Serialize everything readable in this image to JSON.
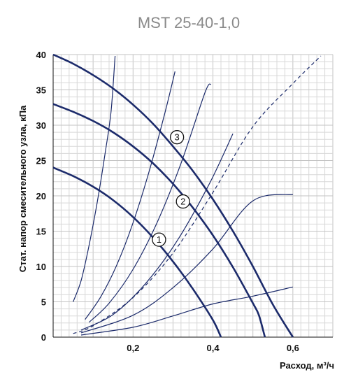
{
  "chart_data": {
    "type": "line",
    "title": "MST 25-40-1,0",
    "xlabel": "Расход, м³/ч",
    "ylabel": "Стат. напор смесительного узла, кПа",
    "xlim": [
      0,
      0.7
    ],
    "ylim": [
      0,
      40
    ],
    "x_ticks": [
      {
        "value": 0.2,
        "label": "0,2"
      },
      {
        "value": 0.4,
        "label": "0,4"
      },
      {
        "value": 0.6,
        "label": "0,6"
      }
    ],
    "y_ticks": [
      {
        "value": 0,
        "label": "0"
      },
      {
        "value": 5,
        "label": "5"
      },
      {
        "value": 10,
        "label": "10"
      },
      {
        "value": 15,
        "label": "15"
      },
      {
        "value": 20,
        "label": "20"
      },
      {
        "value": 25,
        "label": "25"
      },
      {
        "value": 30,
        "label": "30"
      },
      {
        "value": 35,
        "label": "35"
      },
      {
        "value": 40,
        "label": "40"
      }
    ],
    "grid": true,
    "minor_grid": true,
    "pump_curves": [
      {
        "label": "1",
        "marker_at": [
          0.265,
          13.8
        ],
        "points": [
          [
            0,
            24
          ],
          [
            0.05,
            22.8
          ],
          [
            0.1,
            21.3
          ],
          [
            0.15,
            19.4
          ],
          [
            0.2,
            17
          ],
          [
            0.25,
            14.1
          ],
          [
            0.3,
            10.7
          ],
          [
            0.35,
            6.8
          ],
          [
            0.4,
            2.4
          ],
          [
            0.42,
            0
          ]
        ]
      },
      {
        "label": "2",
        "marker_at": [
          0.325,
          19.2
        ],
        "points": [
          [
            0,
            33
          ],
          [
            0.05,
            31.9
          ],
          [
            0.1,
            30.6
          ],
          [
            0.15,
            29
          ],
          [
            0.2,
            27
          ],
          [
            0.25,
            24.6
          ],
          [
            0.3,
            21.7
          ],
          [
            0.35,
            18.3
          ],
          [
            0.4,
            14.4
          ],
          [
            0.45,
            9.9
          ],
          [
            0.5,
            4.8
          ],
          [
            0.515,
            3.1
          ],
          [
            0.53,
            0
          ]
        ]
      },
      {
        "label": "3",
        "marker_at": [
          0.31,
          28.3
        ],
        "points": [
          [
            0,
            40
          ],
          [
            0.05,
            38.7
          ],
          [
            0.1,
            37.1
          ],
          [
            0.15,
            35.2
          ],
          [
            0.2,
            32.9
          ],
          [
            0.25,
            30.2
          ],
          [
            0.3,
            27
          ],
          [
            0.35,
            23.5
          ],
          [
            0.4,
            19.5
          ],
          [
            0.45,
            15
          ],
          [
            0.5,
            10
          ],
          [
            0.55,
            4.6
          ],
          [
            0.6,
            0
          ]
        ]
      }
    ],
    "system_curves": [
      {
        "style": "solid",
        "points": [
          [
            0.05,
            5
          ],
          [
            0.07,
            8
          ],
          [
            0.09,
            13
          ],
          [
            0.11,
            19
          ],
          [
            0.13,
            26
          ],
          [
            0.145,
            32
          ],
          [
            0.155,
            39.8
          ]
        ]
      },
      {
        "style": "solid",
        "points": [
          [
            0.08,
            2.5
          ],
          [
            0.12,
            5.8
          ],
          [
            0.16,
            10.3
          ],
          [
            0.2,
            16.2
          ],
          [
            0.24,
            23.4
          ],
          [
            0.28,
            31.8
          ],
          [
            0.305,
            37.6
          ]
        ]
      },
      {
        "style": "solid",
        "points": [
          [
            0.09,
            2.1
          ],
          [
            0.14,
            4.8
          ],
          [
            0.2,
            9.6
          ],
          [
            0.26,
            16.2
          ],
          [
            0.32,
            24.6
          ],
          [
            0.38,
            34.6
          ],
          [
            0.395,
            35.8
          ]
        ]
      },
      {
        "style": "solid",
        "points": [
          [
            0.07,
            1
          ],
          [
            0.15,
            3.2
          ],
          [
            0.23,
            7.5
          ],
          [
            0.31,
            13.6
          ],
          [
            0.39,
            21.6
          ],
          [
            0.45,
            28.8
          ]
        ]
      },
      {
        "style": "solid",
        "points": [
          [
            0.07,
            0.6
          ],
          [
            0.2,
            3.1
          ],
          [
            0.3,
            7
          ],
          [
            0.4,
            12.5
          ],
          [
            0.5,
            19.3
          ],
          [
            0.6,
            20.2
          ]
        ]
      },
      {
        "style": "solid",
        "points": [
          [
            0.07,
            0.3
          ],
          [
            0.2,
            1.4
          ],
          [
            0.3,
            3
          ],
          [
            0.4,
            4.7
          ],
          [
            0.5,
            5.8
          ],
          [
            0.6,
            7.1
          ]
        ]
      },
      {
        "style": "dashed",
        "points": [
          [
            0.05,
            0.5
          ],
          [
            0.1,
            1.6
          ],
          [
            0.2,
            5.6
          ],
          [
            0.3,
            11.9
          ],
          [
            0.4,
            20.5
          ],
          [
            0.5,
            29.8
          ],
          [
            0.6,
            35.9
          ],
          [
            0.67,
            39.8
          ]
        ]
      }
    ]
  },
  "colors": {
    "curve": "#1c2b6b",
    "grid": "#d8d8d8",
    "grid_major": "#c3c3c3",
    "axis": "#111111",
    "title": "#8a8a8a"
  }
}
